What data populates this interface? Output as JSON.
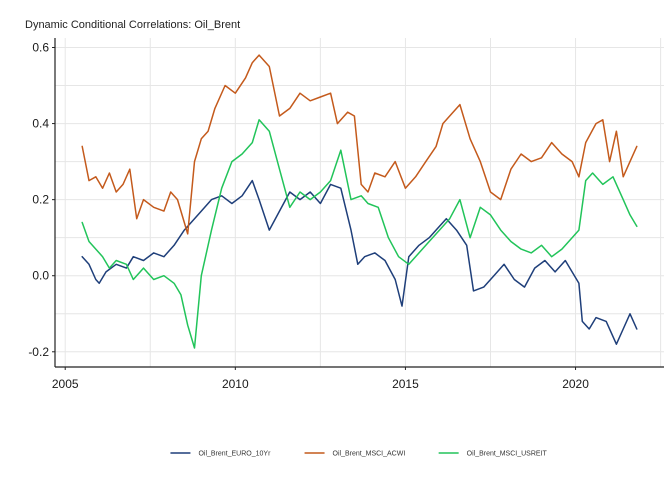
{
  "chart_data": {
    "type": "line",
    "title": "Dynamic Conditional Correlations: Oil_Brent",
    "xlabel": "",
    "ylabel": "",
    "xlim": [
      2004.7,
      2022.6
    ],
    "ylim": [
      -0.24,
      0.625
    ],
    "x_ticks": [
      2005,
      2010,
      2015,
      2020
    ],
    "y_ticks": [
      -0.2,
      0.0,
      0.2,
      0.4,
      0.6
    ],
    "y_tick_labels": [
      "-0.2",
      "0.0",
      "0.2",
      "0.4",
      "0.6"
    ],
    "grid": true,
    "legend_position": "bottom",
    "series": [
      {
        "name": "Oil_Brent_EURO_10Yr",
        "color": "#1f3f7a",
        "x": [
          2005.5,
          2005.7,
          2005.9,
          2006.0,
          2006.2,
          2006.5,
          2006.8,
          2007.0,
          2007.3,
          2007.6,
          2007.9,
          2008.2,
          2008.5,
          2008.8,
          2009.0,
          2009.3,
          2009.6,
          2009.9,
          2010.2,
          2010.5,
          2010.7,
          2011.0,
          2011.3,
          2011.6,
          2011.9,
          2012.2,
          2012.5,
          2012.8,
          2013.1,
          2013.4,
          2013.6,
          2013.8,
          2014.1,
          2014.4,
          2014.7,
          2014.9,
          2015.1,
          2015.4,
          2015.7,
          2016.0,
          2016.2,
          2016.5,
          2016.8,
          2017.0,
          2017.3,
          2017.6,
          2017.9,
          2018.2,
          2018.5,
          2018.8,
          2019.1,
          2019.4,
          2019.7,
          2019.9,
          2020.1,
          2020.2,
          2020.4,
          2020.6,
          2020.9,
          2021.2,
          2021.4,
          2021.6,
          2021.8
        ],
        "y": [
          0.05,
          0.03,
          -0.01,
          -0.02,
          0.01,
          0.03,
          0.02,
          0.05,
          0.04,
          0.06,
          0.05,
          0.08,
          0.12,
          0.15,
          0.17,
          0.2,
          0.21,
          0.19,
          0.21,
          0.25,
          0.2,
          0.12,
          0.17,
          0.22,
          0.2,
          0.22,
          0.19,
          0.24,
          0.23,
          0.12,
          0.03,
          0.05,
          0.06,
          0.04,
          -0.01,
          -0.08,
          0.05,
          0.08,
          0.1,
          0.13,
          0.15,
          0.12,
          0.08,
          -0.04,
          -0.03,
          0.0,
          0.03,
          -0.01,
          -0.03,
          0.02,
          0.04,
          0.01,
          0.04,
          0.01,
          -0.02,
          -0.12,
          -0.14,
          -0.11,
          -0.12,
          -0.18,
          -0.14,
          -0.1,
          -0.14
        ]
      },
      {
        "name": "Oil_Brent_MSCI_ACWI",
        "color": "#c45a1c",
        "x": [
          2005.5,
          2005.7,
          2005.9,
          2006.1,
          2006.3,
          2006.5,
          2006.7,
          2006.9,
          2007.1,
          2007.3,
          2007.6,
          2007.9,
          2008.1,
          2008.3,
          2008.6,
          2008.8,
          2009.0,
          2009.2,
          2009.4,
          2009.7,
          2010.0,
          2010.3,
          2010.5,
          2010.7,
          2011.0,
          2011.3,
          2011.6,
          2011.9,
          2012.2,
          2012.5,
          2012.8,
          2013.0,
          2013.3,
          2013.5,
          2013.7,
          2013.9,
          2014.1,
          2014.4,
          2014.7,
          2015.0,
          2015.3,
          2015.6,
          2015.9,
          2016.1,
          2016.3,
          2016.6,
          2016.9,
          2017.2,
          2017.5,
          2017.8,
          2018.1,
          2018.4,
          2018.7,
          2019.0,
          2019.3,
          2019.6,
          2019.9,
          2020.1,
          2020.3,
          2020.6,
          2020.8,
          2021.0,
          2021.2,
          2021.4,
          2021.6,
          2021.8
        ],
        "y": [
          0.34,
          0.25,
          0.26,
          0.23,
          0.27,
          0.22,
          0.24,
          0.28,
          0.15,
          0.2,
          0.18,
          0.17,
          0.22,
          0.2,
          0.11,
          0.3,
          0.36,
          0.38,
          0.44,
          0.5,
          0.48,
          0.52,
          0.56,
          0.58,
          0.55,
          0.42,
          0.44,
          0.48,
          0.46,
          0.47,
          0.48,
          0.4,
          0.43,
          0.42,
          0.24,
          0.22,
          0.27,
          0.26,
          0.3,
          0.23,
          0.26,
          0.3,
          0.34,
          0.4,
          0.42,
          0.45,
          0.36,
          0.3,
          0.22,
          0.2,
          0.28,
          0.32,
          0.3,
          0.31,
          0.35,
          0.32,
          0.3,
          0.26,
          0.35,
          0.4,
          0.41,
          0.3,
          0.38,
          0.26,
          0.3,
          0.34
        ]
      },
      {
        "name": "Oil_Brent_MSCI_USREIT",
        "color": "#22c45a",
        "x": [
          2005.5,
          2005.7,
          2005.9,
          2006.1,
          2006.3,
          2006.5,
          2006.8,
          2007.0,
          2007.3,
          2007.6,
          2007.9,
          2008.2,
          2008.4,
          2008.6,
          2008.8,
          2009.0,
          2009.3,
          2009.6,
          2009.9,
          2010.2,
          2010.5,
          2010.7,
          2011.0,
          2011.3,
          2011.6,
          2011.9,
          2012.2,
          2012.5,
          2012.8,
          2013.1,
          2013.4,
          2013.7,
          2013.9,
          2014.2,
          2014.5,
          2014.8,
          2015.1,
          2015.4,
          2015.7,
          2016.0,
          2016.3,
          2016.6,
          2016.9,
          2017.2,
          2017.5,
          2017.8,
          2018.1,
          2018.4,
          2018.7,
          2019.0,
          2019.3,
          2019.6,
          2019.9,
          2020.1,
          2020.3,
          2020.5,
          2020.8,
          2021.1,
          2021.4,
          2021.6,
          2021.8
        ],
        "y": [
          0.14,
          0.09,
          0.07,
          0.05,
          0.02,
          0.04,
          0.03,
          -0.01,
          0.02,
          -0.01,
          0.0,
          -0.02,
          -0.05,
          -0.13,
          -0.19,
          0.0,
          0.12,
          0.23,
          0.3,
          0.32,
          0.35,
          0.41,
          0.38,
          0.28,
          0.18,
          0.22,
          0.2,
          0.22,
          0.25,
          0.33,
          0.2,
          0.21,
          0.19,
          0.18,
          0.1,
          0.05,
          0.03,
          0.06,
          0.09,
          0.12,
          0.15,
          0.2,
          0.1,
          0.18,
          0.16,
          0.12,
          0.09,
          0.07,
          0.06,
          0.08,
          0.05,
          0.07,
          0.1,
          0.12,
          0.25,
          0.27,
          0.24,
          0.26,
          0.2,
          0.16,
          0.13
        ]
      }
    ]
  }
}
